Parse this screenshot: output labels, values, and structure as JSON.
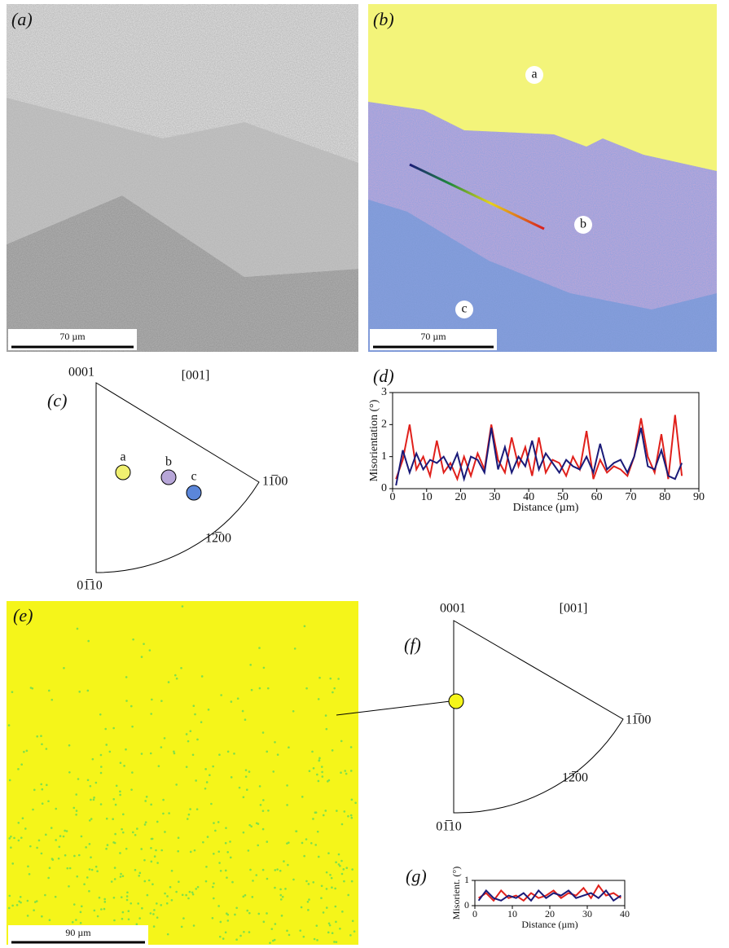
{
  "panels": {
    "a": {
      "label": "(a)",
      "scale_bar": "70 µm"
    },
    "b": {
      "label": "(b)",
      "scale_bar": "70 µm",
      "regions": [
        "a",
        "b",
        "c"
      ]
    },
    "c": {
      "label": "(c)",
      "direction": "[001]",
      "corners": [
        "0001",
        "11̅00",
        "01̅10"
      ],
      "arc_label": "12̅00",
      "spots": [
        "a",
        "b",
        "c"
      ]
    },
    "e": {
      "label": "(e)",
      "scale_bar": "90 µm"
    },
    "f": {
      "label": "(f)",
      "direction": "[001]",
      "corners": [
        "0001",
        "11̅00",
        "01̅10"
      ],
      "arc_label": "12̅00"
    }
  },
  "chart_data": [
    {
      "type": "line",
      "title": "(d)",
      "x_label": "Distance (µm)",
      "y_label": "Misorientation (°)",
      "x": [
        1,
        3,
        5,
        7,
        9,
        11,
        13,
        15,
        17,
        19,
        21,
        23,
        25,
        27,
        29,
        31,
        33,
        35,
        37,
        39,
        41,
        43,
        45,
        47,
        49,
        51,
        53,
        55,
        57,
        59,
        61,
        63,
        65,
        67,
        69,
        71,
        73,
        75,
        77,
        79,
        81,
        83,
        85
      ],
      "series": [
        {
          "color": "#e0201b",
          "values": [
            0.3,
            0.9,
            2.0,
            0.6,
            1.0,
            0.4,
            1.5,
            0.5,
            0.8,
            0.3,
            1.0,
            0.4,
            1.1,
            0.6,
            2.0,
            0.9,
            0.5,
            1.6,
            0.7,
            1.3,
            0.4,
            1.6,
            0.5,
            0.9,
            0.8,
            0.4,
            1.0,
            0.6,
            1.8,
            0.3,
            0.9,
            0.5,
            0.7,
            0.6,
            0.4,
            1.0,
            2.2,
            1.0,
            0.5,
            1.7,
            0.3,
            2.3,
            0.4
          ]
        },
        {
          "color": "#1a1a78",
          "values": [
            0.1,
            1.2,
            0.5,
            1.1,
            0.6,
            0.9,
            0.8,
            1.0,
            0.6,
            1.1,
            0.3,
            1.0,
            0.9,
            0.5,
            1.9,
            0.6,
            1.3,
            0.5,
            1.0,
            0.7,
            1.5,
            0.6,
            1.1,
            0.8,
            0.5,
            0.9,
            0.7,
            0.6,
            1.0,
            0.5,
            1.4,
            0.6,
            0.8,
            0.9,
            0.5,
            1.0,
            1.9,
            0.7,
            0.6,
            1.2,
            0.4,
            0.3,
            0.8
          ]
        }
      ],
      "xlim": [
        0,
        90
      ],
      "xticks": [
        0,
        10,
        20,
        30,
        40,
        50,
        60,
        70,
        80,
        90
      ],
      "ylim": [
        0,
        3
      ],
      "yticks": [
        0,
        1,
        2,
        3
      ]
    },
    {
      "type": "line",
      "title": "(g)",
      "x_label": "Distance (µm)",
      "y_label": "Misorient. (°)",
      "x": [
        1,
        3,
        5,
        7,
        9,
        11,
        13,
        15,
        17,
        19,
        21,
        23,
        25,
        27,
        29,
        31,
        33,
        35,
        37,
        39
      ],
      "series": [
        {
          "color": "#e0201b",
          "values": [
            0.3,
            0.5,
            0.2,
            0.6,
            0.3,
            0.4,
            0.2,
            0.5,
            0.3,
            0.4,
            0.6,
            0.3,
            0.5,
            0.4,
            0.7,
            0.3,
            0.8,
            0.4,
            0.5,
            0.3
          ]
        },
        {
          "color": "#1a1a78",
          "values": [
            0.2,
            0.6,
            0.3,
            0.2,
            0.4,
            0.3,
            0.5,
            0.2,
            0.6,
            0.3,
            0.5,
            0.4,
            0.6,
            0.3,
            0.4,
            0.5,
            0.3,
            0.6,
            0.2,
            0.4
          ]
        }
      ],
      "xlim": [
        0,
        40
      ],
      "xticks": [
        0,
        10,
        20,
        30,
        40
      ],
      "ylim": [
        0,
        1
      ],
      "yticks": [
        0,
        1
      ]
    }
  ]
}
